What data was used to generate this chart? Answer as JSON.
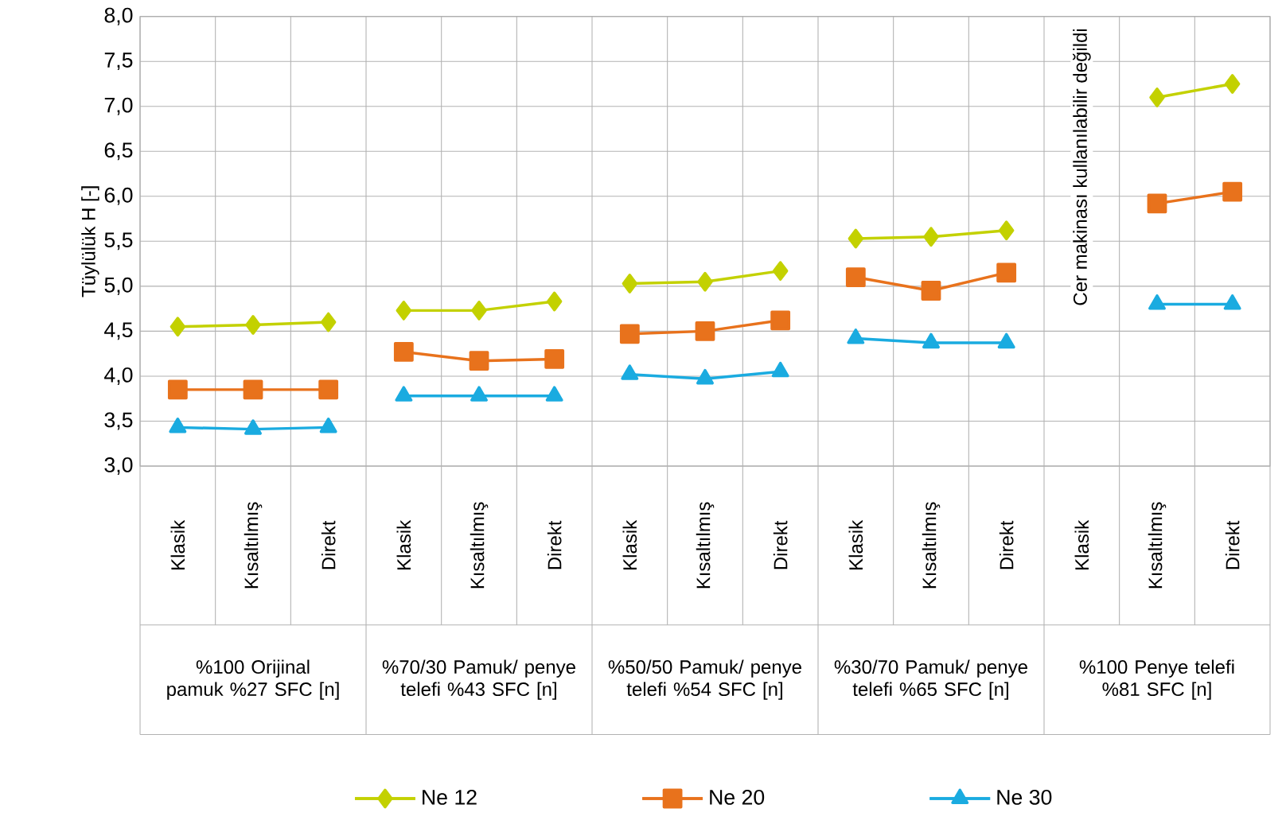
{
  "chart_data": {
    "type": "line",
    "ylabel": "Tüylülük H [-]",
    "categories": [
      "Klasik",
      "Kısaltılmış",
      "Direkt",
      "Klasik",
      "Kısaltılmış",
      "Direkt",
      "Klasik",
      "Kısaltılmış",
      "Direkt",
      "Klasik",
      "Kısaltılmış",
      "Direkt",
      "Klasik",
      "Kısaltılmış",
      "Direkt"
    ],
    "series": [
      {
        "name": "Ne 12",
        "color": "#c3d100",
        "marker": "diamond",
        "values": [
          4.55,
          4.57,
          4.6,
          4.73,
          4.73,
          4.83,
          5.03,
          5.05,
          5.17,
          5.53,
          5.55,
          5.62,
          null,
          7.1,
          7.25
        ]
      },
      {
        "name": "Ne 20",
        "color": "#e8721c",
        "marker": "square",
        "values": [
          3.85,
          3.85,
          3.85,
          4.27,
          4.17,
          4.19,
          4.47,
          4.5,
          4.62,
          5.1,
          4.95,
          5.15,
          null,
          5.92,
          6.05
        ]
      },
      {
        "name": "Ne 30",
        "color": "#1aabe0",
        "marker": "triangle",
        "values": [
          3.43,
          3.41,
          3.43,
          3.78,
          3.78,
          3.78,
          4.02,
          3.97,
          4.05,
          4.42,
          4.37,
          4.37,
          null,
          4.8,
          4.8
        ]
      }
    ],
    "ylim": [
      3,
      8
    ],
    "yticks": [
      {
        "value": 3,
        "label": "3,0"
      },
      {
        "value": 3.5,
        "label": "3,5"
      },
      {
        "value": 4,
        "label": "4,0"
      },
      {
        "value": 4.5,
        "label": "4,5"
      },
      {
        "value": 5,
        "label": "5,0"
      },
      {
        "value": 5.5,
        "label": "5,5"
      },
      {
        "value": 6,
        "label": "6,0"
      },
      {
        "value": 6.5,
        "label": "6,5"
      },
      {
        "value": 7,
        "label": "7,0"
      },
      {
        "value": 7.5,
        "label": "7,5"
      },
      {
        "value": 8,
        "label": "8,0"
      }
    ],
    "grid": "y",
    "legend": "bottom",
    "annotations": [
      "%100 Orijinal pamuk %27 SFC [n]",
      "%70/30 Pamuk/ penye telefi %43 SFC [n]",
      "%50/50 Pamuk/ penye telefi %54 SFC [n]",
      "%30/70 Pamuk/ penye telefi %65 SFC [n]",
      "%100 Penye telefi %81 SFC [n]",
      "Cer makinası kullanılabilir değildi"
    ]
  }
}
